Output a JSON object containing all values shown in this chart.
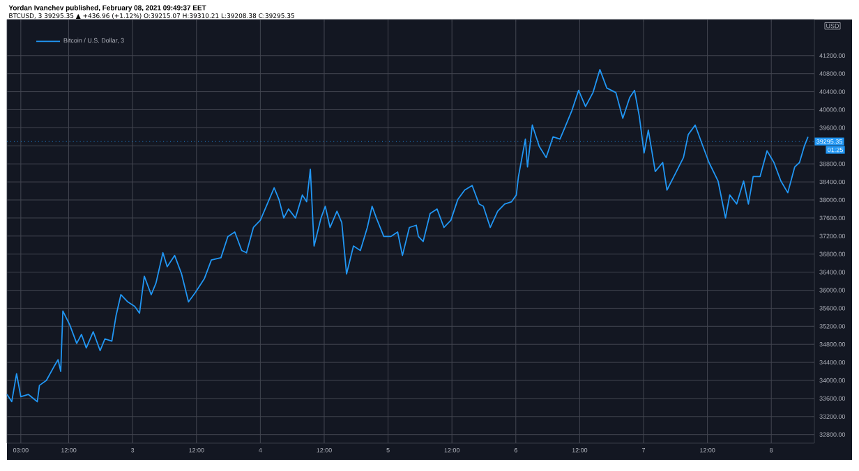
{
  "chart_data": {
    "type": "line",
    "title": "Yordan Ivanchev published, February 08, 2021 09:49:37 EET",
    "subtitle": "BTCUSD, 3 39295.35 ▲ +436.96 (+1.12%) O:39215.07 H:39310.21 L:39208.38 C:39295.35",
    "annotations": [
      "USD",
      "01:25"
    ],
    "xlim": [
      "2021-02-02T00:24",
      "2021-02-08T08:06"
    ],
    "ylim": [
      32610,
      42000
    ],
    "xticks": [
      {
        "value": "2021-02-02T03:00",
        "label": "03:00"
      },
      {
        "value": "2021-02-02T12:00",
        "label": "12:00"
      },
      {
        "value": "2021-02-03",
        "label": "3"
      },
      {
        "value": "2021-02-03T12:00",
        "label": "12:00"
      },
      {
        "value": "2021-02-04",
        "label": "4"
      },
      {
        "value": "2021-02-04T12:00",
        "label": "12:00"
      },
      {
        "value": "2021-02-05",
        "label": "5"
      },
      {
        "value": "2021-02-05T12:00",
        "label": "12:00"
      },
      {
        "value": "2021-02-06",
        "label": "6"
      },
      {
        "value": "2021-02-06T12:00",
        "label": "12:00"
      },
      {
        "value": "2021-02-07",
        "label": "7"
      },
      {
        "value": "2021-02-07T12:00",
        "label": "12:00"
      },
      {
        "value": "2021-02-08",
        "label": "8"
      }
    ],
    "yticks": [
      {
        "value": 32800,
        "label": "32800.00"
      },
      {
        "value": 33200,
        "label": "33200.00"
      },
      {
        "value": 33600,
        "label": "33600.00"
      },
      {
        "value": 34000,
        "label": "34000.00"
      },
      {
        "value": 34400,
        "label": "34400.00"
      },
      {
        "value": 34800,
        "label": "34800.00"
      },
      {
        "value": 35200,
        "label": "35200.00"
      },
      {
        "value": 35600,
        "label": "35600.00"
      },
      {
        "value": 36000,
        "label": "36000.00"
      },
      {
        "value": 36400,
        "label": "36400.00"
      },
      {
        "value": 36800,
        "label": "36800.00"
      },
      {
        "value": 37200,
        "label": "37200.00"
      },
      {
        "value": 37600,
        "label": "37600.00"
      },
      {
        "value": 38000,
        "label": "38000.00"
      },
      {
        "value": 38400,
        "label": "38400.00"
      },
      {
        "value": 38800,
        "label": "38800.00"
      },
      {
        "value": 39200,
        "label": null
      },
      {
        "value": 39600,
        "label": "39600.00"
      },
      {
        "value": 40000,
        "label": "40000.00"
      },
      {
        "value": 40400,
        "label": "40400.00"
      },
      {
        "value": 40800,
        "label": "40800.00"
      },
      {
        "value": 41200,
        "label": "41200.00"
      }
    ],
    "grid": true,
    "legend": "top left",
    "marker": "none",
    "line_style": "solid",
    "ref_lines": [
      {
        "axis": "y",
        "value": 39295.35,
        "label": "39295.35",
        "color": "#2196f3",
        "line_style": "dotted"
      }
    ],
    "series": [
      {
        "name": "Bitcoin / U.S. Dollar, 3",
        "color": "#2196f3",
        "x": [
          "2021-02-02T00:24",
          "2021-02-02T01:18",
          "2021-02-02T02:12",
          "2021-02-02T03:00",
          "2021-02-02T04:24",
          "2021-02-02T06:06",
          "2021-02-02T06:30",
          "2021-02-02T07:48",
          "2021-02-02T09:12",
          "2021-02-02T10:00",
          "2021-02-02T10:30",
          "2021-02-02T10:54",
          "2021-02-02T12:12",
          "2021-02-02T13:30",
          "2021-02-02T14:24",
          "2021-02-02T15:18",
          "2021-02-02T16:36",
          "2021-02-02T17:54",
          "2021-02-02T18:48",
          "2021-02-02T20:06",
          "2021-02-02T20:54",
          "2021-02-02T21:48",
          "2021-02-02T23:06",
          "2021-02-03T00:24",
          "2021-02-03T01:18",
          "2021-02-03T02:12",
          "2021-02-03T03:30",
          "2021-02-03T04:24",
          "2021-02-03T05:42",
          "2021-02-03T06:30",
          "2021-02-03T07:54",
          "2021-02-03T09:12",
          "2021-02-03T10:30",
          "2021-02-03T11:48",
          "2021-02-03T13:30",
          "2021-02-03T14:48",
          "2021-02-03T16:36",
          "2021-02-03T17:54",
          "2021-02-03T19:12",
          "2021-02-03T20:30",
          "2021-02-03T21:24",
          "2021-02-03T22:42",
          "2021-02-04T00:00",
          "2021-02-04T01:18",
          "2021-02-04T02:36",
          "2021-02-04T03:30",
          "2021-02-04T04:24",
          "2021-02-04T05:18",
          "2021-02-04T06:36",
          "2021-02-04T07:54",
          "2021-02-04T08:42",
          "2021-02-04T09:24",
          "2021-02-04T10:06",
          "2021-02-04T11:24",
          "2021-02-04T12:12",
          "2021-02-04T13:06",
          "2021-02-04T14:24",
          "2021-02-04T15:18",
          "2021-02-04T16:12",
          "2021-02-04T17:30",
          "2021-02-04T18:48",
          "2021-02-04T20:06",
          "2021-02-04T21:00",
          "2021-02-04T21:48",
          "2021-02-04T23:12",
          "2021-02-05T00:30",
          "2021-02-05T01:48",
          "2021-02-05T02:42",
          "2021-02-05T04:00",
          "2021-02-05T05:18",
          "2021-02-05T05:42",
          "2021-02-05T06:36",
          "2021-02-05T07:54",
          "2021-02-05T09:12",
          "2021-02-05T10:30",
          "2021-02-05T11:48",
          "2021-02-05T13:06",
          "2021-02-05T14:24",
          "2021-02-05T15:48",
          "2021-02-05T17:06",
          "2021-02-05T17:54",
          "2021-02-05T19:12",
          "2021-02-05T20:36",
          "2021-02-05T21:54",
          "2021-02-05T23:12",
          "2021-02-06T00:06",
          "2021-02-06T00:30",
          "2021-02-06T01:48",
          "2021-02-06T02:12",
          "2021-02-06T03:06",
          "2021-02-06T04:24",
          "2021-02-06T05:42",
          "2021-02-06T07:00",
          "2021-02-06T08:18",
          "2021-02-06T09:12",
          "2021-02-06T10:30",
          "2021-02-06T11:48",
          "2021-02-06T13:06",
          "2021-02-06T14:30",
          "2021-02-06T15:48",
          "2021-02-06T17:06",
          "2021-02-06T18:48",
          "2021-02-06T20:06",
          "2021-02-06T21:24",
          "2021-02-06T22:18",
          "2021-02-06T23:12",
          "2021-02-07T00:06",
          "2021-02-07T00:54",
          "2021-02-07T02:12",
          "2021-02-07T03:36",
          "2021-02-07T04:24",
          "2021-02-07T05:42",
          "2021-02-07T07:30",
          "2021-02-07T08:24",
          "2021-02-07T09:42",
          "2021-02-07T11:00",
          "2021-02-07T12:18",
          "2021-02-07T14:00",
          "2021-02-07T15:24",
          "2021-02-07T16:12",
          "2021-02-07T17:30",
          "2021-02-07T18:48",
          "2021-02-07T19:42",
          "2021-02-07T20:36",
          "2021-02-07T21:54",
          "2021-02-07T23:12",
          "2021-02-08T00:30",
          "2021-02-08T01:48",
          "2021-02-08T03:06",
          "2021-02-08T04:24",
          "2021-02-08T05:18",
          "2021-02-08T06:12",
          "2021-02-08T06:54"
        ],
        "values": [
          33690,
          33530,
          34150,
          33640,
          33690,
          33530,
          33890,
          34000,
          34300,
          34460,
          34200,
          35540,
          35230,
          34820,
          35020,
          34720,
          35080,
          34660,
          34920,
          34870,
          35440,
          35900,
          35740,
          35640,
          35490,
          36310,
          35900,
          36160,
          36830,
          36520,
          36770,
          36360,
          35740,
          35950,
          36260,
          36670,
          36720,
          37190,
          37290,
          36880,
          36830,
          37390,
          37550,
          37910,
          38270,
          38010,
          37600,
          37800,
          37600,
          38110,
          37960,
          38680,
          36980,
          37600,
          37860,
          37390,
          37750,
          37500,
          36360,
          36980,
          36880,
          37390,
          37860,
          37600,
          37190,
          37190,
          37290,
          36770,
          37390,
          37440,
          37190,
          37080,
          37700,
          37800,
          37390,
          37550,
          38010,
          38220,
          38320,
          37910,
          37860,
          37390,
          37750,
          37910,
          37960,
          38110,
          38520,
          39350,
          38730,
          39660,
          39190,
          38940,
          39400,
          39350,
          39600,
          39970,
          40430,
          40070,
          40380,
          40890,
          40480,
          40380,
          39810,
          40270,
          40430,
          39860,
          39040,
          39550,
          38630,
          38830,
          38220,
          38520,
          38940,
          39450,
          39660,
          39240,
          38830,
          38420,
          37600,
          38110,
          37910,
          38420,
          37910,
          38520,
          38520,
          39090,
          38830,
          38420,
          38160,
          38730,
          38830,
          39190,
          39400
        ]
      }
    ]
  }
}
